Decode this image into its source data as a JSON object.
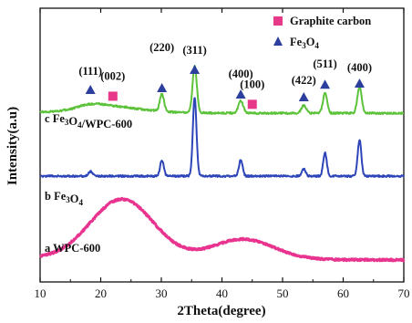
{
  "chart_data": {
    "type": "line",
    "xlabel": "2Theta(degree)",
    "ylabel": "Intensity(a.u)",
    "xlim": [
      10,
      70
    ],
    "xticks": [
      "10",
      "20",
      "30",
      "40",
      "50",
      "60",
      "70"
    ],
    "y_ticks_shown": false,
    "grid": false,
    "legend": {
      "placement": "top-right",
      "items": [
        {
          "label": "Graphite carbon",
          "marker": "square",
          "color": "#e8388a"
        },
        {
          "label_main": "Fe",
          "label_sub": "3",
          "label_main2": "O",
          "label_sub2": "4",
          "marker": "triangle",
          "color": "#2d3f9e"
        }
      ]
    },
    "series": [
      {
        "name_prefix": "c",
        "name_parts": [
          [
            "Fe",
            "3"
          ],
          [
            "O",
            "4"
          ],
          [
            "/WPC-600",
            ""
          ]
        ],
        "color": "#5cc23a",
        "baseline": 0.62,
        "peaks": [
          {
            "x": 18.3,
            "h": 0.1,
            "w": 2.2
          },
          {
            "x": 22.0,
            "h": 0.12,
            "w": 4.5
          },
          {
            "x": 30.1,
            "h": 0.45,
            "w": 0.35
          },
          {
            "x": 35.5,
            "h": 1.22,
            "w": 0.35
          },
          {
            "x": 43.1,
            "h": 0.32,
            "w": 0.4
          },
          {
            "x": 53.5,
            "h": 0.2,
            "w": 0.4
          },
          {
            "x": 57.0,
            "h": 0.52,
            "w": 0.35
          },
          {
            "x": 62.7,
            "h": 0.7,
            "w": 0.35
          }
        ]
      },
      {
        "name_prefix": "b",
        "name_parts": [
          [
            "Fe",
            "3"
          ],
          [
            "O",
            "4"
          ]
        ],
        "color": "#2d45b8",
        "baseline": 0.0,
        "peaks": [
          {
            "x": 18.3,
            "h": 0.12,
            "w": 0.35
          },
          {
            "x": 30.1,
            "h": 0.42,
            "w": 0.3
          },
          {
            "x": 35.5,
            "h": 2.05,
            "w": 0.3
          },
          {
            "x": 43.1,
            "h": 0.42,
            "w": 0.3
          },
          {
            "x": 53.5,
            "h": 0.18,
            "w": 0.3
          },
          {
            "x": 57.0,
            "h": 0.6,
            "w": 0.3
          },
          {
            "x": 62.7,
            "h": 0.95,
            "w": 0.3
          }
        ]
      },
      {
        "name_prefix": "a",
        "name_parts": [
          [
            "WPC-600",
            ""
          ]
        ],
        "color": "#e8338f",
        "baseline": 0.0,
        "peaks": [
          {
            "x": 23.5,
            "h": 1.55,
            "w": 5.2
          },
          {
            "x": 43.5,
            "h": 0.52,
            "w": 5.0
          }
        ]
      }
    ],
    "annotations": [
      {
        "text": "(111)",
        "marker": "triangle",
        "x": 18.3
      },
      {
        "text": "(002)",
        "marker": "square",
        "x": 22.0
      },
      {
        "text": "(220)",
        "marker": "triangle",
        "x": 30.1
      },
      {
        "text": "(311)",
        "marker": "triangle",
        "x": 35.5
      },
      {
        "text": "(400)",
        "marker": "triangle",
        "x": 43.1
      },
      {
        "text": "(100)",
        "marker": "square",
        "x": 45.0
      },
      {
        "text": "(422)",
        "marker": "triangle",
        "x": 53.5
      },
      {
        "text": "(511)",
        "marker": "triangle",
        "x": 57.0
      },
      {
        "text": "(400)",
        "marker": "triangle",
        "x": 62.7
      }
    ]
  }
}
